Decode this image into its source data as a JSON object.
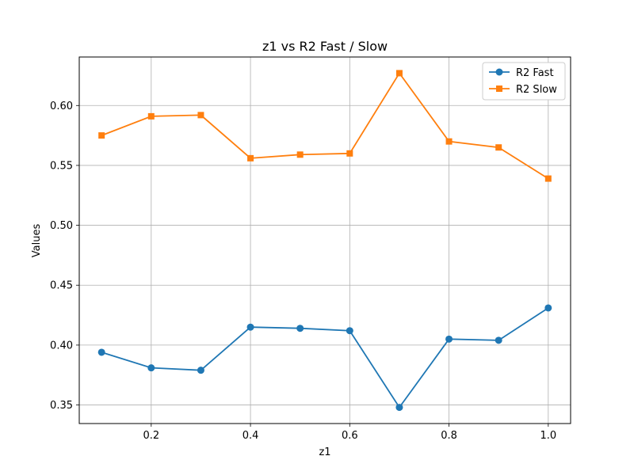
{
  "chart_data": {
    "type": "line",
    "title": "z1 vs R2 Fast / Slow",
    "xlabel": "z1",
    "ylabel": "Values",
    "x": [
      0.1,
      0.2,
      0.3,
      0.4,
      0.5,
      0.6,
      0.7,
      0.8,
      0.9,
      1.0
    ],
    "xlim": [
      0.055,
      1.045
    ],
    "ylim": [
      0.3345,
      0.6405
    ],
    "xticks": [
      0.2,
      0.4,
      0.6,
      0.8,
      1.0
    ],
    "xtick_labels": [
      "0.2",
      "0.4",
      "0.6",
      "0.8",
      "1.0"
    ],
    "yticks": [
      0.35,
      0.4,
      0.45,
      0.5,
      0.55,
      0.6
    ],
    "ytick_labels": [
      "0.35",
      "0.40",
      "0.45",
      "0.50",
      "0.55",
      "0.60"
    ],
    "grid": true,
    "legend_position": "top-right",
    "series": [
      {
        "name": "R2 Fast",
        "marker": "circle",
        "color": "#1f77b4",
        "values": [
          0.394,
          0.381,
          0.379,
          0.415,
          0.414,
          0.412,
          0.348,
          0.405,
          0.404,
          0.431
        ]
      },
      {
        "name": "R2 Slow",
        "marker": "square",
        "color": "#ff7f0e",
        "values": [
          0.575,
          0.591,
          0.592,
          0.556,
          0.559,
          0.56,
          0.627,
          0.57,
          0.565,
          0.539
        ]
      }
    ]
  }
}
